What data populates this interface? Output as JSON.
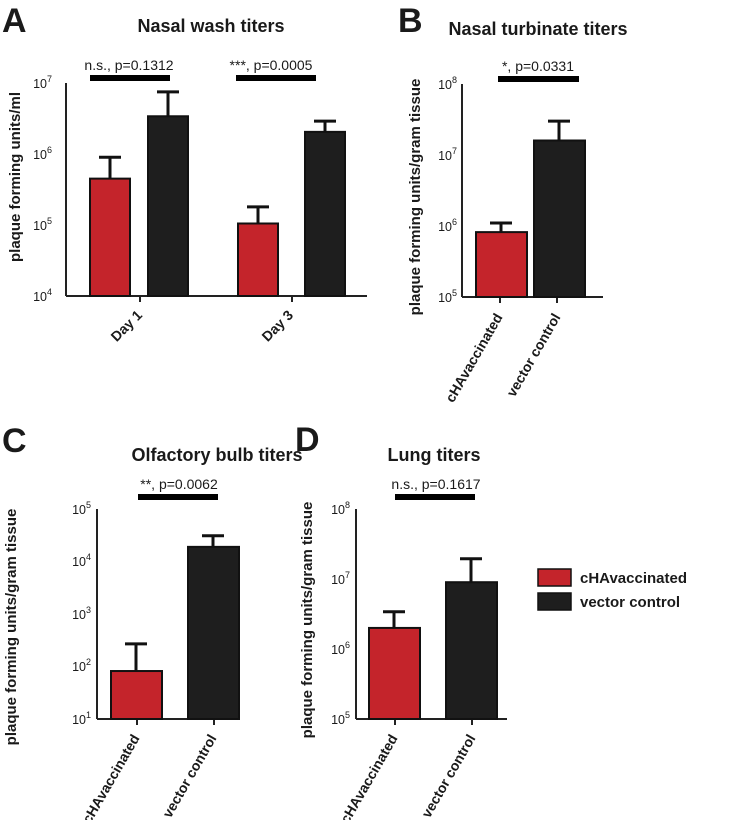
{
  "colors": {
    "cHA": "#c4242b",
    "vector": "#1e1e1e",
    "axis": "#222222",
    "bracket": "#000000"
  },
  "legend": [
    {
      "label": "cHAvaccinated",
      "color": "#c4242b"
    },
    {
      "label": "vector control",
      "color": "#1e1e1e"
    }
  ],
  "chart_data": [
    {
      "panel": "A",
      "type": "bar",
      "title": "Nasal wash titers",
      "ylabel": "plaque forming units/ml",
      "yscale": "log",
      "ylim": [
        10000,
        10000000
      ],
      "yticks": [
        {
          "base": "10",
          "exp": "4"
        },
        {
          "base": "10",
          "exp": "5"
        },
        {
          "base": "10",
          "exp": "6"
        },
        {
          "base": "10",
          "exp": "7"
        }
      ],
      "categories": [
        "Day 1",
        "Day 3"
      ],
      "series": [
        {
          "name": "cHAvaccinated",
          "values": [
            450000,
            105000
          ],
          "error_upper": [
            900000,
            180000
          ]
        },
        {
          "name": "vector control",
          "values": [
            3400000,
            2050000
          ],
          "error_upper": [
            7500000,
            2900000
          ]
        }
      ],
      "comparisons": [
        {
          "label": "n.s., p=0.1312",
          "category": "Day 1"
        },
        {
          "label": "***, p=0.0005",
          "category": "Day 3"
        }
      ]
    },
    {
      "panel": "B",
      "type": "bar",
      "title": "Nasal turbinate titers",
      "ylabel": "plaque forming units/gram tissue",
      "yscale": "log",
      "ylim": [
        100000,
        100000000
      ],
      "yticks": [
        {
          "base": "10",
          "exp": "5"
        },
        {
          "base": "10",
          "exp": "6"
        },
        {
          "base": "10",
          "exp": "7"
        },
        {
          "base": "10",
          "exp": "8"
        }
      ],
      "categories": [
        "cHAvaccinated",
        "vector control"
      ],
      "values": [
        820000,
        16000000
      ],
      "error_upper": [
        1100000,
        30000000
      ],
      "comparison": {
        "label": "*, p=0.0331"
      }
    },
    {
      "panel": "C",
      "type": "bar",
      "title": "Olfactory bulb titers",
      "ylabel": "plaque forming units/gram tissue",
      "yscale": "log",
      "ylim": [
        10,
        100000
      ],
      "yticks": [
        {
          "base": "10",
          "exp": "1"
        },
        {
          "base": "10",
          "exp": "2"
        },
        {
          "base": "10",
          "exp": "3"
        },
        {
          "base": "10",
          "exp": "4"
        },
        {
          "base": "10",
          "exp": "5"
        }
      ],
      "categories": [
        "cHAvaccinated",
        "vector control"
      ],
      "values": [
        82,
        19000
      ],
      "error_upper": [
        270,
        31000
      ],
      "comparison": {
        "label": "**, p=0.0062"
      }
    },
    {
      "panel": "D",
      "type": "bar",
      "title": "Lung titers",
      "ylabel": "plaque forming units/gram tissue",
      "yscale": "log",
      "ylim": [
        100000,
        100000000
      ],
      "yticks": [
        {
          "base": "10",
          "exp": "5"
        },
        {
          "base": "10",
          "exp": "6"
        },
        {
          "base": "10",
          "exp": "7"
        },
        {
          "base": "10",
          "exp": "8"
        }
      ],
      "categories": [
        "cHAvaccinated",
        "vector control"
      ],
      "values": [
        2000000,
        9000000
      ],
      "error_upper": [
        3400000,
        19500000
      ],
      "comparison": {
        "label": "n.s., p=0.1617"
      }
    }
  ]
}
